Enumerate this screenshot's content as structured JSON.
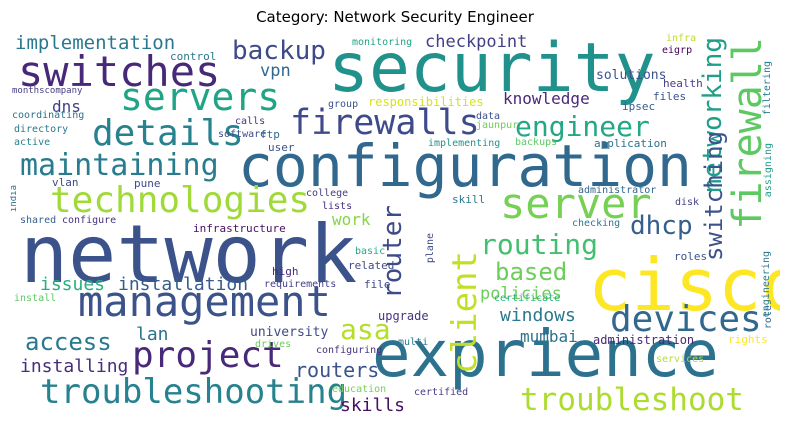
{
  "title": "Category: Network Security Engineer",
  "words": [
    {
      "text": "network",
      "color": "#3b528b"
    },
    {
      "text": "security",
      "color": "#21918c"
    },
    {
      "text": "configuration",
      "color": "#31688e"
    },
    {
      "text": "exprience",
      "color": "#2c728e"
    },
    {
      "text": "cisco",
      "color": "#fde725"
    },
    {
      "text": "management",
      "color": "#3b528b"
    },
    {
      "text": "firewall",
      "color": "#5ec962"
    },
    {
      "text": "switches",
      "color": "#482878"
    },
    {
      "text": "servers",
      "color": "#20a486"
    },
    {
      "text": "details",
      "color": "#26828e"
    },
    {
      "text": "firewalls",
      "color": "#3e4a89"
    },
    {
      "text": "technologies",
      "color": "#a0da39"
    },
    {
      "text": "server",
      "color": "#75d054"
    },
    {
      "text": "troubleshooting",
      "color": "#26828e"
    },
    {
      "text": "troubleshoot",
      "color": "#addc30"
    },
    {
      "text": "project",
      "color": "#482878"
    },
    {
      "text": "devices",
      "color": "#31688e"
    },
    {
      "text": "maintaining",
      "color": "#287c8e"
    },
    {
      "text": "engineer",
      "color": "#22a884"
    },
    {
      "text": "backup",
      "color": "#3e4a89"
    },
    {
      "text": "client",
      "color": "#c2df23"
    },
    {
      "text": "routing",
      "color": "#44bf70"
    },
    {
      "text": "networking",
      "color": "#1f9e89"
    },
    {
      "text": "switching",
      "color": "#3b528b"
    },
    {
      "text": "router",
      "color": "#3e4a89"
    },
    {
      "text": "dhcp",
      "color": "#355f8d"
    },
    {
      "text": "based",
      "color": "#6ccd5a"
    },
    {
      "text": "asa",
      "color": "#b5de2b"
    },
    {
      "text": "access",
      "color": "#2a788e"
    },
    {
      "text": "implementation",
      "color": "#2a788e"
    },
    {
      "text": "checkpoint",
      "color": "#424086"
    },
    {
      "text": "knowledge",
      "color": "#482878"
    },
    {
      "text": "installation",
      "color": "#365c8d"
    },
    {
      "text": "issues",
      "color": "#28ae80"
    },
    {
      "text": "installing",
      "color": "#472d7b"
    },
    {
      "text": "routers",
      "color": "#3b528b"
    },
    {
      "text": "windows",
      "color": "#2a788e"
    },
    {
      "text": "skills",
      "color": "#471063"
    },
    {
      "text": "policies",
      "color": "#6ccd5a"
    },
    {
      "text": "lan",
      "color": "#2c728e"
    },
    {
      "text": "vpn",
      "color": "#31688e"
    },
    {
      "text": "dns",
      "color": "#424086"
    },
    {
      "text": "work",
      "color": "#86d549"
    },
    {
      "text": "mumbai",
      "color": "#2c728e"
    },
    {
      "text": "university",
      "color": "#3e4a89"
    },
    {
      "text": "upgrade",
      "color": "#46337f"
    },
    {
      "text": "administration",
      "color": "#482878"
    },
    {
      "text": "responsibilities",
      "color": "#d8e219"
    },
    {
      "text": "solutions",
      "color": "#3b528b"
    },
    {
      "text": "infrastructure",
      "color": "#471063"
    },
    {
      "text": "control",
      "color": "#2a788e"
    },
    {
      "text": "monitoring",
      "color": "#20a486"
    },
    {
      "text": "infra",
      "color": "#bddf26"
    },
    {
      "text": "eigrp",
      "color": "#440154"
    },
    {
      "text": "filtering",
      "color": "#287c8e"
    },
    {
      "text": "health",
      "color": "#433e85"
    },
    {
      "text": "files",
      "color": "#3b528b"
    },
    {
      "text": "ipsec",
      "color": "#365c8d"
    },
    {
      "text": "application",
      "color": "#2c728e"
    },
    {
      "text": "data",
      "color": "#3b528b"
    },
    {
      "text": "jaunpur",
      "color": "#6ece58"
    },
    {
      "text": "backups",
      "color": "#5ec962"
    },
    {
      "text": "implementing",
      "color": "#21918c"
    },
    {
      "text": "group",
      "color": "#3b528b"
    },
    {
      "text": "monthscompany",
      "color": "#433e85"
    },
    {
      "text": "coordinating",
      "color": "#2c728e"
    },
    {
      "text": "directory",
      "color": "#2a788e"
    },
    {
      "text": "active",
      "color": "#26828e"
    },
    {
      "text": "vlan",
      "color": "#3e4a89"
    },
    {
      "text": "india",
      "color": "#2c728e"
    },
    {
      "text": "shared",
      "color": "#355f8d"
    },
    {
      "text": "configure",
      "color": "#46337f"
    },
    {
      "text": "calls",
      "color": "#46337f"
    },
    {
      "text": "software",
      "color": "#3e4a89"
    },
    {
      "text": "ftp",
      "color": "#31688e"
    },
    {
      "text": "user",
      "color": "#3b528b"
    },
    {
      "text": "pune",
      "color": "#3e4a89"
    },
    {
      "text": "college",
      "color": "#424086"
    },
    {
      "text": "lists",
      "color": "#472d7b"
    },
    {
      "text": "skill",
      "color": "#2a788e"
    },
    {
      "text": "administrator",
      "color": "#31688e"
    },
    {
      "text": "disk",
      "color": "#424086"
    },
    {
      "text": "assigning",
      "color": "#1f9e89"
    },
    {
      "text": "checking",
      "color": "#2a788e"
    },
    {
      "text": "plane",
      "color": "#3e4a89"
    },
    {
      "text": "basic",
      "color": "#22a884"
    },
    {
      "text": "related",
      "color": "#3e4a89"
    },
    {
      "text": "high",
      "color": "#482878"
    },
    {
      "text": "requirements",
      "color": "#433e85"
    },
    {
      "text": "file",
      "color": "#3e4a89"
    },
    {
      "text": "certificate",
      "color": "#28ae80"
    },
    {
      "text": "engineering",
      "color": "#2a788e"
    },
    {
      "text": "roles",
      "color": "#3b528b"
    },
    {
      "text": "role",
      "color": "#31688e"
    },
    {
      "text": "install",
      "color": "#5ec962"
    },
    {
      "text": "rights",
      "color": "#fde725"
    },
    {
      "text": "drives",
      "color": "#6ccd5a"
    },
    {
      "text": "multi",
      "color": "#2a788e"
    },
    {
      "text": "configuring",
      "color": "#46337f"
    },
    {
      "text": "education",
      "color": "#75d054"
    },
    {
      "text": "certified",
      "color": "#433e85"
    },
    {
      "text": "services",
      "color": "#b5de2b"
    }
  ]
}
